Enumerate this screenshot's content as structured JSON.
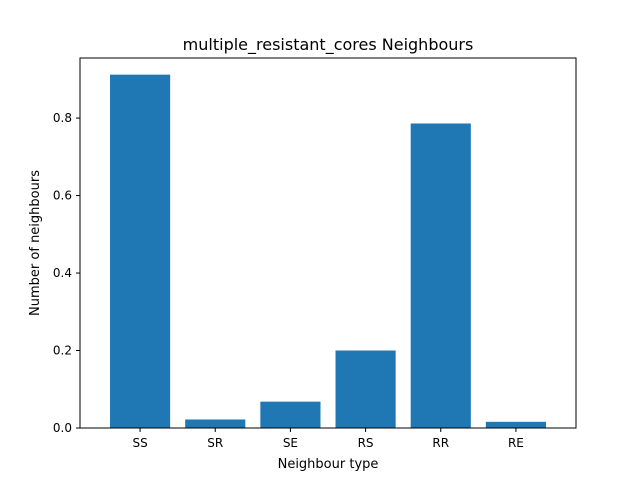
{
  "chart_data": {
    "type": "bar",
    "title": "multiple_resistant_cores Neighbours",
    "xlabel": "Neighbour type",
    "ylabel": "Number of neighbours",
    "categories": [
      "SS",
      "SR",
      "SE",
      "RS",
      "RR",
      "RE"
    ],
    "values": [
      0.912,
      0.022,
      0.068,
      0.2,
      0.786,
      0.016
    ],
    "ylim": [
      0,
      0.955
    ],
    "yticks": [
      0.0,
      0.2,
      0.4,
      0.6,
      0.8
    ],
    "ytick_labels": [
      "0.0",
      "0.2",
      "0.4",
      "0.6",
      "0.8"
    ],
    "bar_color": "#1f77b4",
    "grid": false,
    "legend": "none"
  }
}
